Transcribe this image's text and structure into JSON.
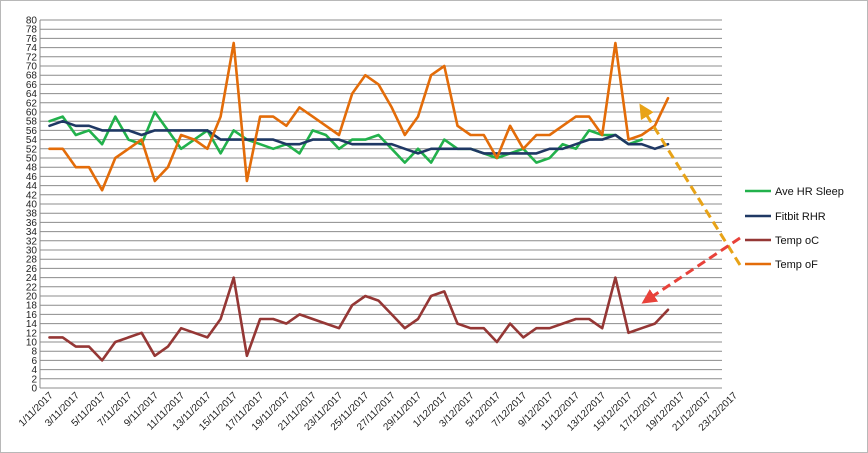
{
  "chart_data": {
    "type": "line",
    "title": "",
    "xlabel": "",
    "ylabel": "",
    "ylim": [
      0,
      80
    ],
    "ytick_step": 2,
    "grid": true,
    "legend_position": "right",
    "x_tick_labels": [
      "1/11/2017",
      "3/11/2017",
      "5/11/2017",
      "7/11/2017",
      "9/11/2017",
      "11/11/2017",
      "13/11/2017",
      "15/11/2017",
      "17/11/2017",
      "19/11/2017",
      "21/11/2017",
      "23/11/2017",
      "25/11/2017",
      "27/11/2017",
      "29/11/2017",
      "1/12/2017",
      "3/12/2017",
      "5/12/2017",
      "7/12/2017",
      "9/12/2017",
      "11/12/2017",
      "13/12/2017",
      "15/12/2017",
      "17/12/2017",
      "19/12/2017",
      "21/12/2017",
      "23/12/2017"
    ],
    "x": [
      "1/11/2017",
      "2/11/2017",
      "3/11/2017",
      "4/11/2017",
      "5/11/2017",
      "6/11/2017",
      "7/11/2017",
      "8/11/2017",
      "9/11/2017",
      "10/11/2017",
      "11/11/2017",
      "12/11/2017",
      "13/11/2017",
      "14/11/2017",
      "15/11/2017",
      "16/11/2017",
      "17/11/2017",
      "18/11/2017",
      "19/11/2017",
      "20/11/2017",
      "21/11/2017",
      "22/11/2017",
      "23/11/2017",
      "24/11/2017",
      "25/11/2017",
      "26/11/2017",
      "27/11/2017",
      "28/11/2017",
      "29/11/2017",
      "30/11/2017",
      "1/12/2017",
      "2/12/2017",
      "3/12/2017",
      "4/12/2017",
      "5/12/2017",
      "6/12/2017",
      "7/12/2017",
      "8/12/2017",
      "9/12/2017",
      "10/12/2017",
      "11/12/2017",
      "12/12/2017",
      "13/12/2017",
      "14/12/2017",
      "15/12/2017",
      "16/12/2017",
      "17/12/2017",
      "18/12/2017"
    ],
    "series": [
      {
        "name": "Ave HR Sleep",
        "color": "#22b14c",
        "values": [
          58,
          59,
          55,
          56,
          53,
          59,
          54,
          53,
          60,
          56,
          52,
          54,
          56,
          51,
          56,
          54,
          53,
          52,
          53,
          51,
          56,
          55,
          52,
          54,
          54,
          55,
          52,
          49,
          52,
          49,
          54,
          52,
          52,
          51,
          50,
          51,
          52,
          49,
          50,
          53,
          52,
          56,
          55,
          55,
          53,
          54,
          null,
          54
        ]
      },
      {
        "name": "Fitbit RHR",
        "color": "#1f3864",
        "values": [
          57,
          58,
          57,
          57,
          56,
          56,
          56,
          55,
          56,
          56,
          56,
          56,
          56,
          54,
          54,
          54,
          54,
          54,
          53,
          53,
          54,
          54,
          54,
          53,
          53,
          53,
          53,
          52,
          51,
          52,
          52,
          52,
          52,
          51,
          51,
          51,
          51,
          51,
          52,
          52,
          53,
          54,
          54,
          55,
          53,
          53,
          52,
          53
        ]
      },
      {
        "name": "Temp oC",
        "color": "#953735",
        "values": [
          11,
          11,
          9,
          9,
          6,
          10,
          11,
          12,
          7,
          9,
          13,
          12,
          11,
          15,
          24,
          7,
          15,
          15,
          14,
          16,
          15,
          14,
          13,
          18,
          20,
          19,
          16,
          13,
          15,
          20,
          21,
          14,
          13,
          13,
          10,
          14,
          11,
          13,
          13,
          14,
          15,
          15,
          13,
          24,
          12,
          13,
          14,
          17
        ]
      },
      {
        "name": "Temp oF",
        "color": "#e36c09",
        "values": [
          52,
          52,
          48,
          48,
          43,
          50,
          52,
          54,
          45,
          48,
          55,
          54,
          52,
          59,
          75,
          45,
          59,
          59,
          57,
          61,
          59,
          57,
          55,
          64,
          68,
          66,
          61,
          55,
          59,
          68,
          70,
          57,
          55,
          55,
          50,
          57,
          52,
          55,
          55,
          57,
          59,
          59,
          55,
          75,
          54,
          55,
          57,
          63
        ]
      }
    ]
  }
}
